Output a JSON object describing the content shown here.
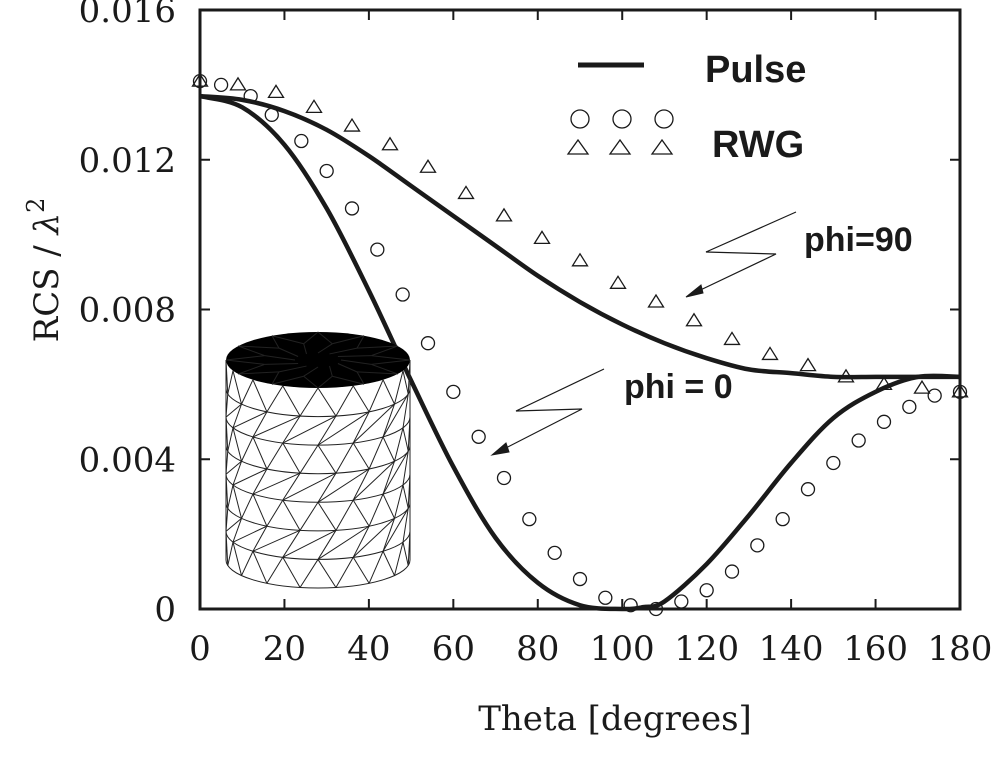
{
  "chart_data": {
    "type": "line",
    "xlabel": "Theta [degrees]",
    "ylabel_text": "RCS / ",
    "ylabel_symbol": "λ",
    "ylabel_power": "2",
    "xlim": [
      0,
      180
    ],
    "ylim": [
      0,
      0.016
    ],
    "xticks": [
      0,
      20,
      40,
      60,
      80,
      100,
      120,
      140,
      160,
      180
    ],
    "xtick_labels": [
      "0",
      "20",
      "40",
      "60",
      "80",
      "100",
      "120",
      "140",
      "160",
      "180"
    ],
    "yticks": [
      0,
      0.004,
      0.008,
      0.012,
      0.016
    ],
    "ytick_labels": [
      "0",
      "0.004",
      "0.008",
      "0.012",
      "0.016"
    ],
    "grid": false,
    "legend": {
      "placement": "top-right",
      "entries": [
        {
          "label": "Pulse",
          "marker": "line"
        },
        {
          "label": "RWG",
          "marker": "circle"
        },
        {
          "label": "",
          "marker": "triangle"
        }
      ]
    },
    "annotations": [
      {
        "text": "phi=90",
        "target": [
          115,
          0.0083
        ]
      },
      {
        "text": "phi = 0",
        "target": [
          69,
          0.0041
        ]
      }
    ],
    "series": [
      {
        "marker": "line",
        "x": [
          0,
          10,
          20,
          30,
          40,
          50,
          60,
          70,
          80,
          90,
          100,
          110,
          120,
          130,
          140,
          150,
          160,
          170,
          180
        ],
        "values": [
          0.0137,
          0.0136,
          0.0133,
          0.0128,
          0.0121,
          0.0113,
          0.0105,
          0.0097,
          0.0089,
          0.0082,
          0.0076,
          0.0071,
          0.0067,
          0.0064,
          0.0063,
          0.0062,
          0.0062,
          0.0062,
          0.0062
        ]
      },
      {
        "marker": "line",
        "x": [
          0,
          10,
          20,
          30,
          40,
          50,
          60,
          70,
          80,
          90,
          100,
          105,
          110,
          120,
          130,
          140,
          150,
          160,
          170,
          180
        ],
        "values": [
          0.0137,
          0.0134,
          0.0124,
          0.0107,
          0.0085,
          0.0061,
          0.0038,
          0.0019,
          0.0007,
          0.0001,
          0.0,
          5e-05,
          0.0002,
          0.0012,
          0.0025,
          0.0039,
          0.0051,
          0.0058,
          0.0062,
          0.0062
        ]
      },
      {
        "marker": "circle",
        "x": [
          0,
          5,
          12,
          17,
          24,
          30,
          36,
          42,
          48,
          54,
          60,
          66,
          72,
          78,
          84,
          90,
          96,
          102,
          108,
          114,
          120,
          126,
          132,
          138,
          144,
          150,
          156,
          162,
          168,
          174,
          180
        ],
        "values": [
          0.0141,
          0.014,
          0.0137,
          0.0132,
          0.0125,
          0.0117,
          0.0107,
          0.0096,
          0.0084,
          0.0071,
          0.0058,
          0.0046,
          0.0035,
          0.0024,
          0.0015,
          0.0008,
          0.0003,
          0.0001,
          0.0,
          0.0002,
          0.0005,
          0.001,
          0.0017,
          0.0024,
          0.0032,
          0.0039,
          0.0045,
          0.005,
          0.0054,
          0.0057,
          0.0058
        ]
      },
      {
        "marker": "triangle",
        "x": [
          0,
          9,
          18,
          27,
          36,
          45,
          54,
          63,
          72,
          81,
          90,
          99,
          108,
          117,
          126,
          135,
          144,
          153,
          162,
          171,
          180
        ],
        "values": [
          0.0141,
          0.014,
          0.0138,
          0.0134,
          0.0129,
          0.0124,
          0.0118,
          0.0111,
          0.0105,
          0.0099,
          0.0093,
          0.0087,
          0.0082,
          0.0077,
          0.0072,
          0.0068,
          0.0065,
          0.0062,
          0.006,
          0.0059,
          0.0058
        ]
      }
    ]
  }
}
